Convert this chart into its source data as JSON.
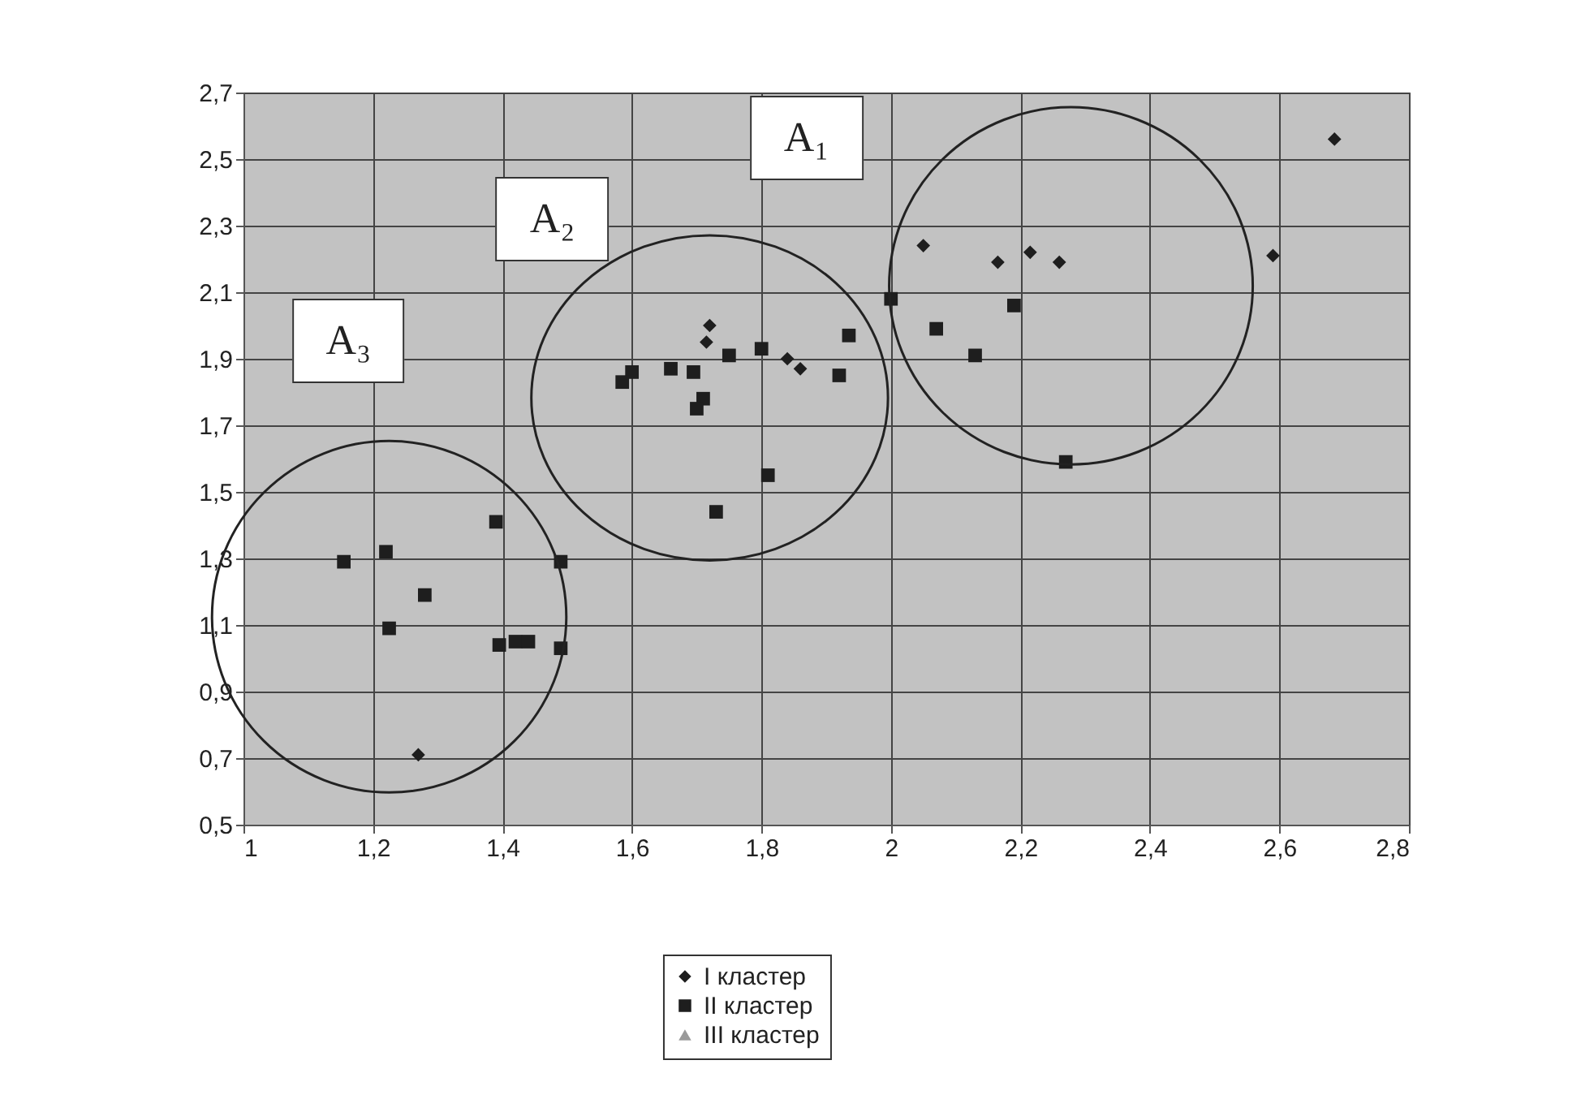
{
  "chart_data": {
    "type": "scatter",
    "xlim": [
      1,
      2.8
    ],
    "xticks": [
      1,
      {
        "value": 1.2,
        "label": "1,2"
      },
      {
        "value": 1.4,
        "label": "1,4"
      },
      {
        "value": 1.6,
        "label": "1,6"
      },
      {
        "value": 1.8,
        "label": "1,8"
      },
      2,
      {
        "value": 2.2,
        "label": "2,2"
      },
      {
        "value": 2.4,
        "label": "2,4"
      },
      {
        "value": 2.6,
        "label": "2,6"
      },
      {
        "value": 2.8,
        "label": "2,8"
      }
    ],
    "ylim": [
      0.5,
      2.7
    ],
    "yticks": [
      {
        "value": 0.5,
        "label": "0,5"
      },
      {
        "value": 0.7,
        "label": "0,7"
      },
      {
        "value": 0.9,
        "label": "0,9"
      },
      {
        "value": 1.1,
        "label": "1,1"
      },
      {
        "value": 1.3,
        "label": "1,3"
      },
      {
        "value": 1.5,
        "label": "1,5"
      },
      {
        "value": 1.7,
        "label": "1,7"
      },
      {
        "value": 1.9,
        "label": "1,9"
      },
      {
        "value": 2.1,
        "label": "2,1"
      },
      {
        "value": 2.3,
        "label": "2,3"
      },
      {
        "value": 2.5,
        "label": "2,5"
      },
      {
        "value": 2.7,
        "label": "2,7"
      }
    ],
    "grid": true,
    "legend": "bottom",
    "annotations": [
      "A₁",
      "A₂",
      "A₃"
    ],
    "series": [
      {
        "name": "I кластер",
        "color": "#1e1e1e",
        "marker": "diamond",
        "x": [
          1.27,
          1.72,
          1.715,
          1.84,
          1.86,
          2.05,
          2.165,
          2.215,
          2.26,
          2.59,
          2.685
        ],
        "values": [
          0.71,
          2.0,
          1.95,
          1.9,
          1.87,
          2.24,
          2.19,
          2.22,
          2.19,
          2.21,
          2.56
        ]
      },
      {
        "name": "II кластер",
        "color": "#1e1e1e",
        "marker": "square",
        "x": [
          2.0,
          2.19,
          2.07,
          2.13,
          2.27,
          1.935,
          1.92,
          1.8,
          1.75,
          1.695,
          1.66,
          1.6,
          1.585,
          1.71,
          1.7,
          1.81,
          1.73,
          1.39,
          1.155,
          1.22,
          1.28,
          1.225,
          1.49,
          1.395,
          1.42,
          1.44,
          1.49
        ],
        "values": [
          2.08,
          2.06,
          1.99,
          1.91,
          1.59,
          1.97,
          1.85,
          1.93,
          1.91,
          1.86,
          1.87,
          1.86,
          1.83,
          1.78,
          1.75,
          1.55,
          1.44,
          1.41,
          1.29,
          1.32,
          1.19,
          1.09,
          1.29,
          1.04,
          1.05,
          1.05,
          1.03
        ]
      },
      {
        "name": "III кластер",
        "color": "#9a9a9a",
        "marker": "triangle"
      }
    ]
  }
}
